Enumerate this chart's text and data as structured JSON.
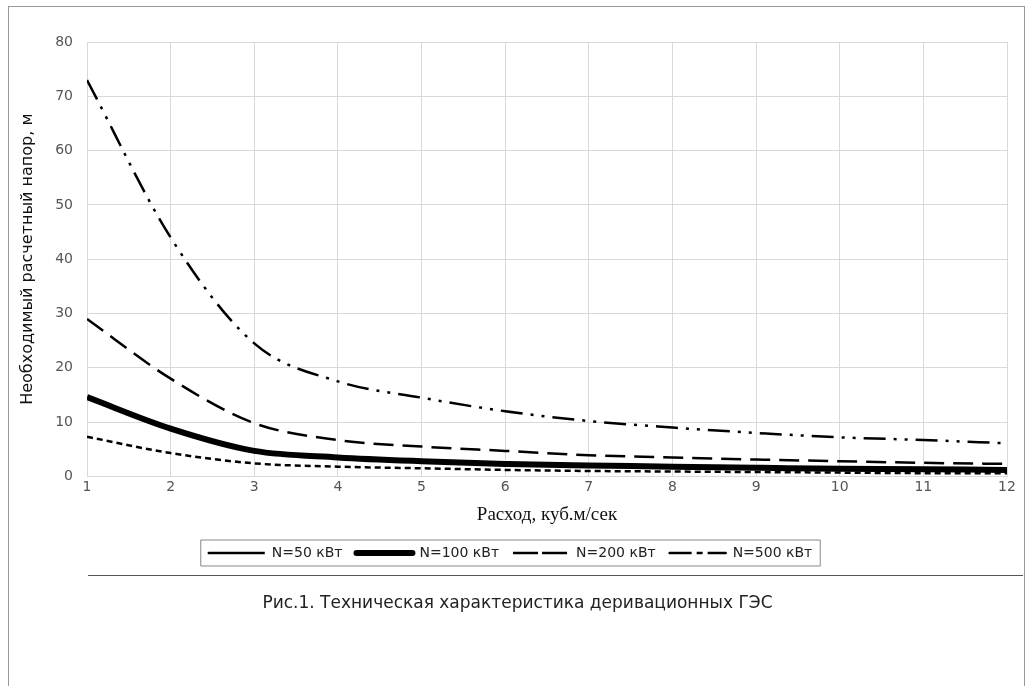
{
  "chart_data": {
    "type": "line",
    "xlabel": "Расход, куб.м/сек",
    "ylabel": "Необходимый расчетный напор, м",
    "x": [
      1,
      2,
      3,
      4,
      5,
      6,
      7,
      8,
      9,
      10,
      11,
      12
    ],
    "series": [
      {
        "name": "N=50 кВт",
        "color": "#000000",
        "line_style": "dashed",
        "values": [
          7.3,
          4.3,
          2.4,
          1.8,
          1.5,
          1.2,
          1.0,
          0.9,
          0.8,
          0.7,
          0.6,
          0.6
        ]
      },
      {
        "name": "N=100 кВт",
        "color": "#000000",
        "line_style": "solid",
        "values": [
          14.6,
          8.8,
          4.7,
          3.5,
          2.8,
          2.3,
          2.0,
          1.8,
          1.6,
          1.4,
          1.3,
          1.2
        ]
      },
      {
        "name": "N=200 кВт",
        "color": "#000000",
        "line_style": "longdash",
        "values": [
          29,
          18,
          9.8,
          6.7,
          5.5,
          4.7,
          3.9,
          3.5,
          3.1,
          2.8,
          2.5,
          2.3
        ]
      },
      {
        "name": "N=500 кВт",
        "color": "#000000",
        "line_style": "dashdot",
        "values": [
          73,
          44,
          24.5,
          17.5,
          14.5,
          12,
          10.2,
          9,
          8,
          7.2,
          6.7,
          6.1
        ]
      }
    ],
    "xlim": [
      1,
      12
    ],
    "xticks": [
      1,
      2,
      3,
      4,
      5,
      6,
      7,
      8,
      9,
      10,
      11,
      12
    ],
    "ylim": [
      0,
      80
    ],
    "yticks": [
      0,
      10,
      20,
      30,
      40,
      50,
      60,
      70,
      80
    ],
    "grid": true,
    "legend": "bottom",
    "marker": "none",
    "annotations": [
      "Рис.1. Техническая характеристика деривационных ГЭС"
    ]
  }
}
